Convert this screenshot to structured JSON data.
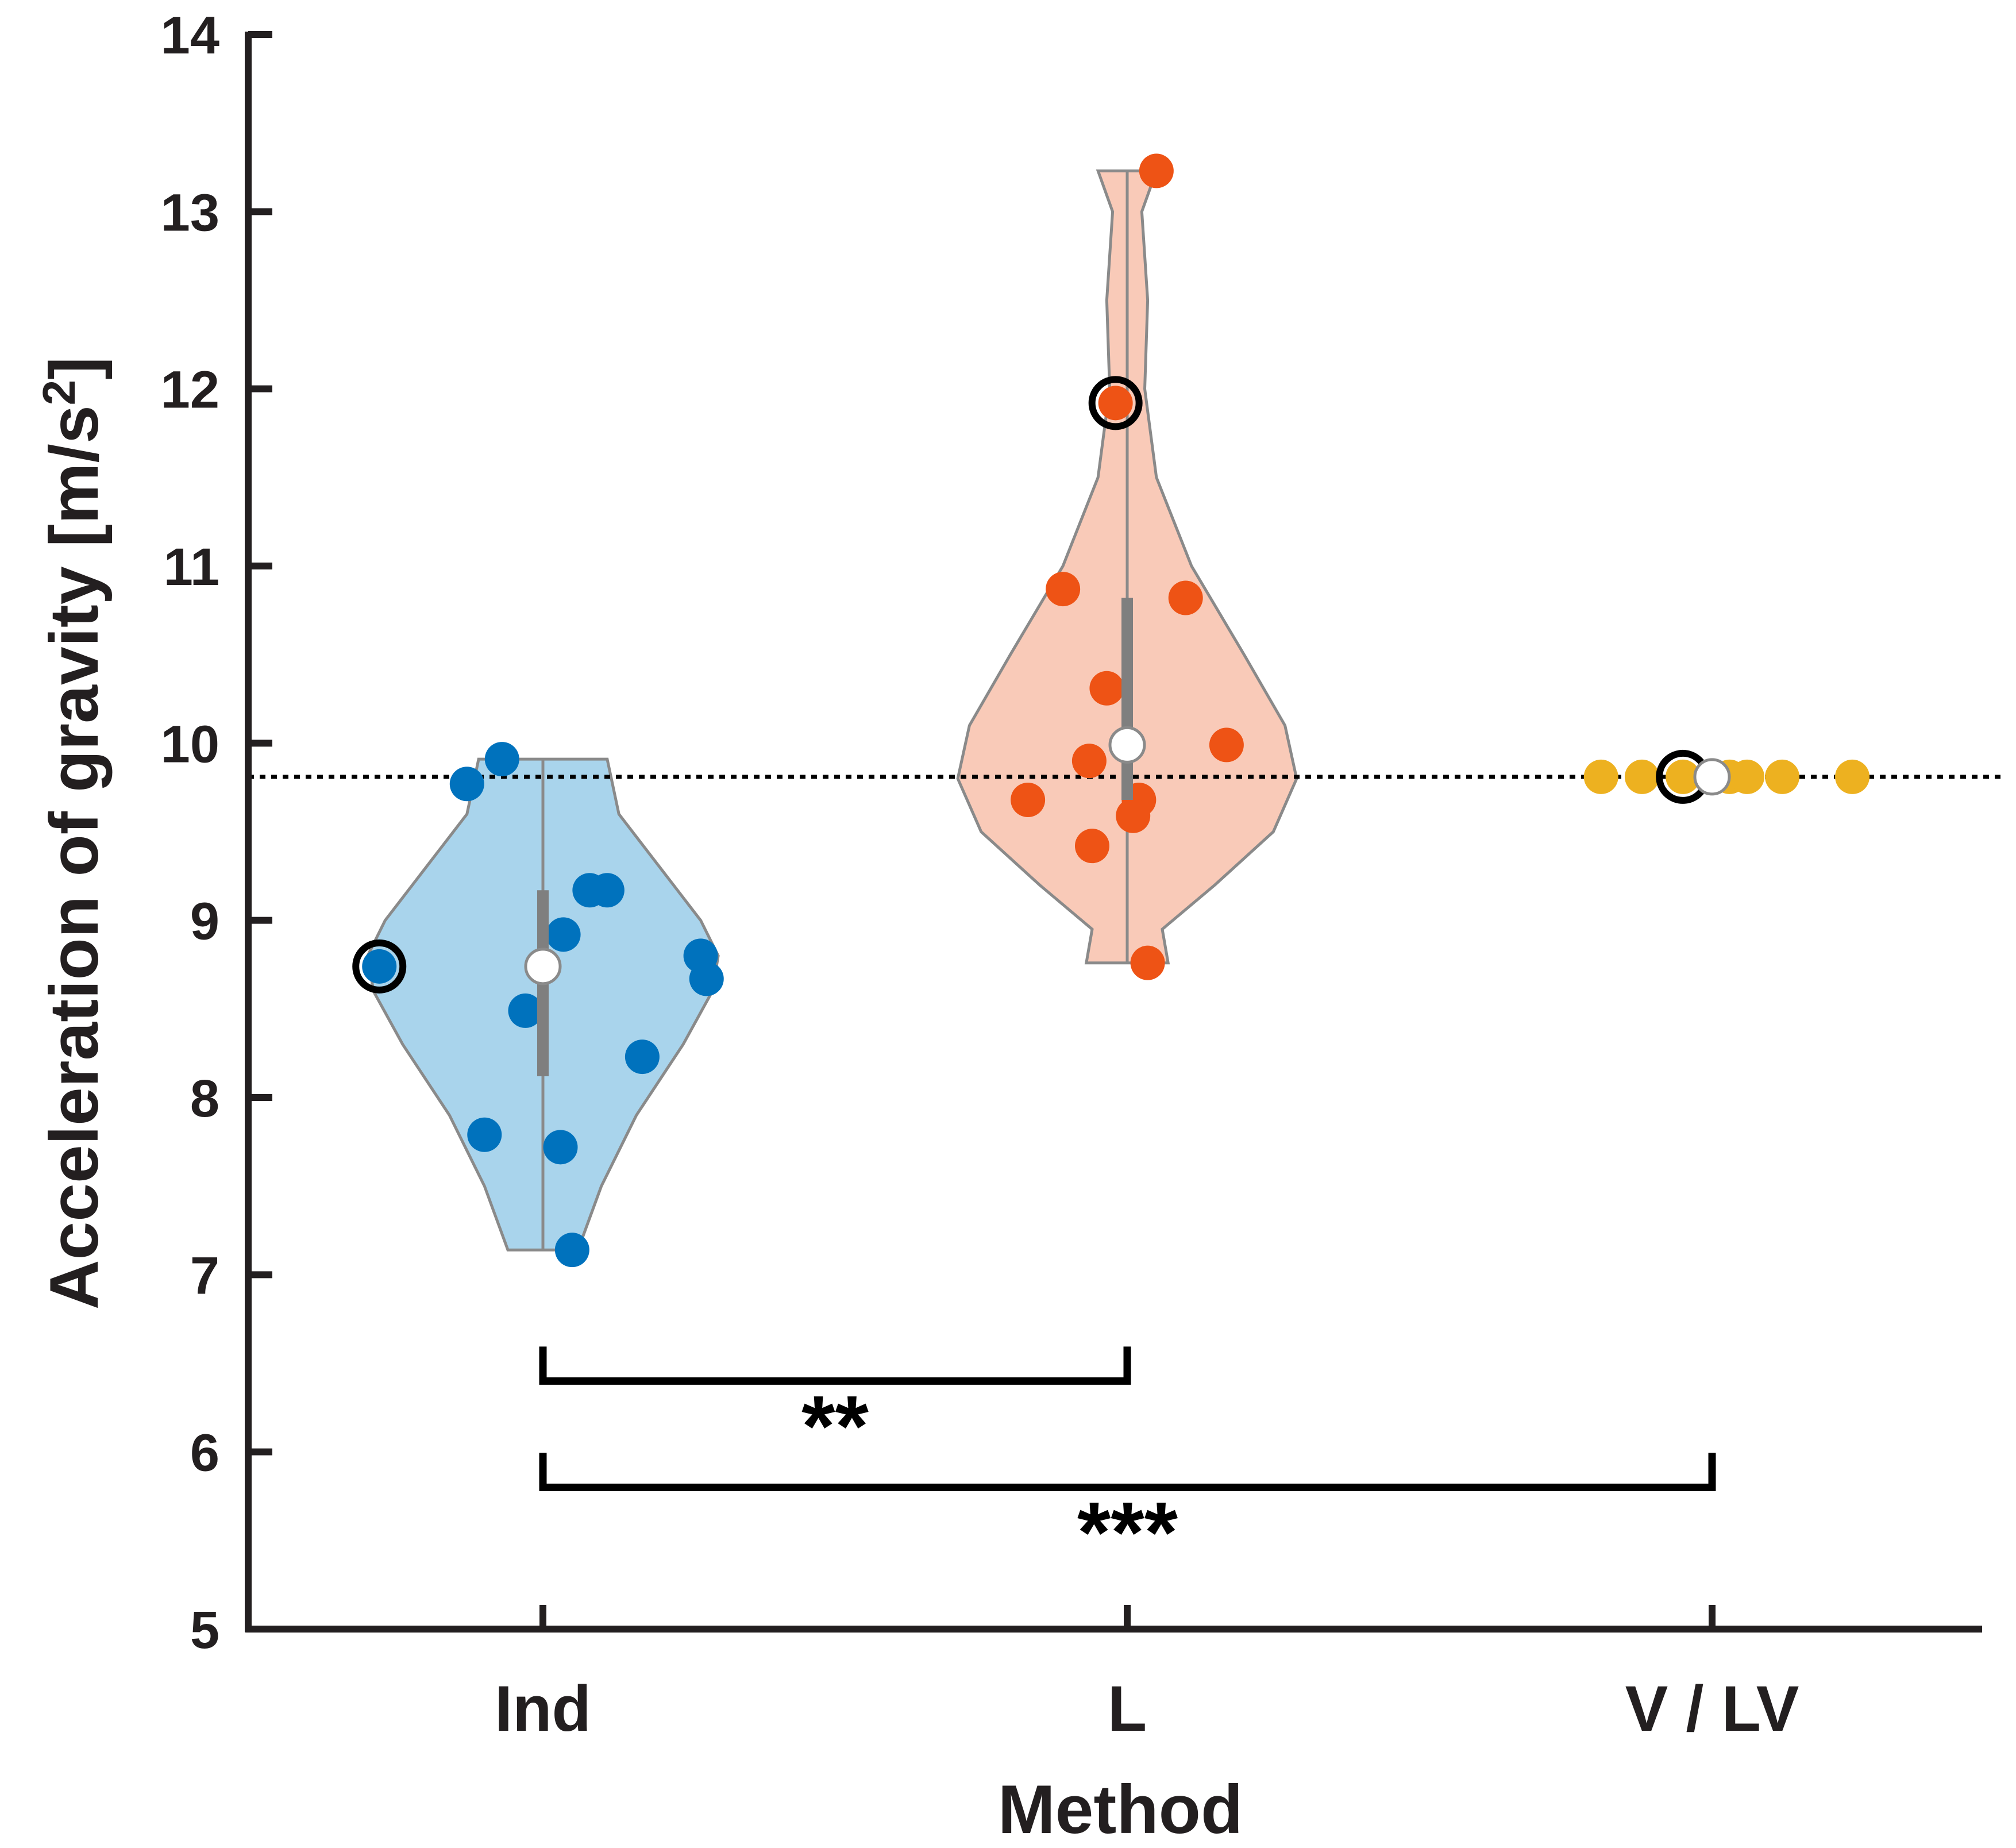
{
  "chart_data": {
    "type": "violin",
    "xlabel": "Method",
    "ylabel_main": "Acceleration of gravity [m/s",
    "ylabel_sup": "2",
    "ylabel_close": "]",
    "ylim": [
      5,
      14
    ],
    "yticks": [
      5,
      6,
      7,
      8,
      9,
      10,
      11,
      12,
      13,
      14
    ],
    "categories": [
      "Ind",
      "L",
      "V / LV"
    ],
    "reference_line": {
      "value": 9.81,
      "style": "dotted"
    },
    "colors": {
      "Ind": {
        "point": "#0072BD",
        "fill": "#a9d4ec"
      },
      "L": {
        "point": "#EE5315",
        "fill": "#f9cab8"
      },
      "V / LV": {
        "point": "#EDB120",
        "fill": "#f9e3ad"
      },
      "outline": "#8a8a8a",
      "axis": "#231f20"
    },
    "series": [
      {
        "name": "Ind",
        "points": [
          {
            "dx": -0.28,
            "y": 8.74,
            "highlight": true
          },
          {
            "dx": -0.13,
            "y": 9.77
          },
          {
            "dx": -0.07,
            "y": 9.91
          },
          {
            "dx": 0.08,
            "y": 9.17
          },
          {
            "dx": 0.11,
            "y": 9.17
          },
          {
            "dx": 0.035,
            "y": 8.92
          },
          {
            "dx": -0.03,
            "y": 8.49
          },
          {
            "dx": 0.27,
            "y": 8.8
          },
          {
            "dx": 0.28,
            "y": 8.67
          },
          {
            "dx": 0.17,
            "y": 8.23
          },
          {
            "dx": -0.1,
            "y": 7.79
          },
          {
            "dx": 0.03,
            "y": 7.72
          },
          {
            "dx": 0.05,
            "y": 7.14
          }
        ],
        "median": 8.74,
        "iqr": [
          8.12,
          9.17
        ],
        "range": [
          7.14,
          9.91
        ],
        "violin_shape": [
          [
            7.14,
            0.06
          ],
          [
            7.5,
            0.1
          ],
          [
            7.9,
            0.16
          ],
          [
            8.3,
            0.24
          ],
          [
            8.6,
            0.29
          ],
          [
            8.8,
            0.3
          ],
          [
            9.0,
            0.27
          ],
          [
            9.3,
            0.2
          ],
          [
            9.6,
            0.13
          ],
          [
            9.91,
            0.11
          ]
        ]
      },
      {
        "name": "L",
        "points": [
          {
            "dx": 0.05,
            "y": 13.23
          },
          {
            "dx": -0.02,
            "y": 11.92,
            "highlight": true
          },
          {
            "dx": -0.11,
            "y": 10.87
          },
          {
            "dx": 0.1,
            "y": 10.82
          },
          {
            "dx": -0.035,
            "y": 10.31
          },
          {
            "dx": 0.17,
            "y": 9.99
          },
          {
            "dx": -0.065,
            "y": 9.9
          },
          {
            "dx": -0.17,
            "y": 9.68
          },
          {
            "dx": 0.02,
            "y": 9.68
          },
          {
            "dx": 0.01,
            "y": 9.59
          },
          {
            "dx": -0.06,
            "y": 9.42
          },
          {
            "dx": 0.035,
            "y": 8.76
          }
        ],
        "median": 9.99,
        "iqr": [
          9.68,
          10.82
        ],
        "range": [
          8.76,
          13.23
        ],
        "violin_shape": [
          [
            8.76,
            0.07
          ],
          [
            8.95,
            0.06
          ],
          [
            9.2,
            0.15
          ],
          [
            9.5,
            0.25
          ],
          [
            9.8,
            0.29
          ],
          [
            10.1,
            0.27
          ],
          [
            10.5,
            0.2
          ],
          [
            11.0,
            0.11
          ],
          [
            11.5,
            0.05
          ],
          [
            12.0,
            0.03
          ],
          [
            12.5,
            0.035
          ],
          [
            13.0,
            0.025
          ],
          [
            13.23,
            0.05
          ]
        ]
      },
      {
        "name": "V / LV",
        "points": [
          {
            "dx": -0.19,
            "y": 9.81
          },
          {
            "dx": -0.12,
            "y": 9.81
          },
          {
            "dx": -0.05,
            "y": 9.81,
            "highlight": true
          },
          {
            "dx": 0.03,
            "y": 9.81
          },
          {
            "dx": 0.06,
            "y": 9.81
          },
          {
            "dx": 0.12,
            "y": 9.81
          },
          {
            "dx": 0.24,
            "y": 9.81
          }
        ],
        "median": 9.81
      }
    ],
    "significance": [
      {
        "from": "Ind",
        "to": "L",
        "y": 6.4,
        "label": "**"
      },
      {
        "from": "Ind",
        "to": "V / LV",
        "y": 5.8,
        "label": "***"
      }
    ]
  }
}
